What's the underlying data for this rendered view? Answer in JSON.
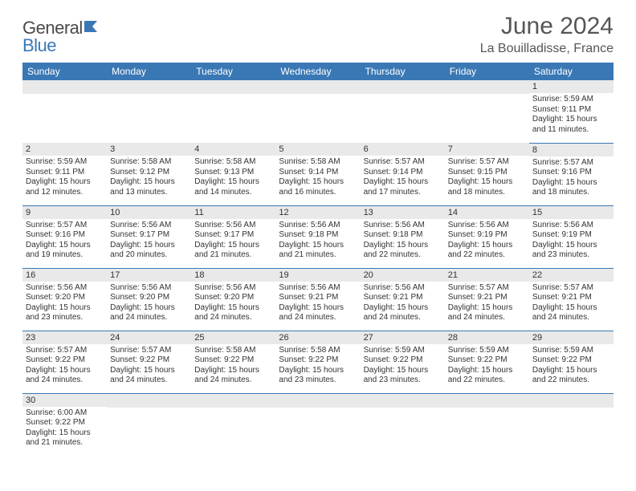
{
  "logo": {
    "part1": "General",
    "part2": "Blue"
  },
  "title": "June 2024",
  "location": "La Bouilladisse, France",
  "colors": {
    "header_bg": "#3a78b5",
    "header_text": "#ffffff",
    "daynum_bg": "#e9e9e9",
    "border": "#3a78b5",
    "body_text": "#333333",
    "title_text": "#555555"
  },
  "days": [
    "Sunday",
    "Monday",
    "Tuesday",
    "Wednesday",
    "Thursday",
    "Friday",
    "Saturday"
  ],
  "weeks": [
    [
      null,
      null,
      null,
      null,
      null,
      null,
      {
        "n": "1",
        "sr": "Sunrise: 5:59 AM",
        "ss": "Sunset: 9:11 PM",
        "d1": "Daylight: 15 hours",
        "d2": "and 11 minutes."
      }
    ],
    [
      {
        "n": "2",
        "sr": "Sunrise: 5:59 AM",
        "ss": "Sunset: 9:11 PM",
        "d1": "Daylight: 15 hours",
        "d2": "and 12 minutes."
      },
      {
        "n": "3",
        "sr": "Sunrise: 5:58 AM",
        "ss": "Sunset: 9:12 PM",
        "d1": "Daylight: 15 hours",
        "d2": "and 13 minutes."
      },
      {
        "n": "4",
        "sr": "Sunrise: 5:58 AM",
        "ss": "Sunset: 9:13 PM",
        "d1": "Daylight: 15 hours",
        "d2": "and 14 minutes."
      },
      {
        "n": "5",
        "sr": "Sunrise: 5:58 AM",
        "ss": "Sunset: 9:14 PM",
        "d1": "Daylight: 15 hours",
        "d2": "and 16 minutes."
      },
      {
        "n": "6",
        "sr": "Sunrise: 5:57 AM",
        "ss": "Sunset: 9:14 PM",
        "d1": "Daylight: 15 hours",
        "d2": "and 17 minutes."
      },
      {
        "n": "7",
        "sr": "Sunrise: 5:57 AM",
        "ss": "Sunset: 9:15 PM",
        "d1": "Daylight: 15 hours",
        "d2": "and 18 minutes."
      },
      {
        "n": "8",
        "sr": "Sunrise: 5:57 AM",
        "ss": "Sunset: 9:16 PM",
        "d1": "Daylight: 15 hours",
        "d2": "and 18 minutes."
      }
    ],
    [
      {
        "n": "9",
        "sr": "Sunrise: 5:57 AM",
        "ss": "Sunset: 9:16 PM",
        "d1": "Daylight: 15 hours",
        "d2": "and 19 minutes."
      },
      {
        "n": "10",
        "sr": "Sunrise: 5:56 AM",
        "ss": "Sunset: 9:17 PM",
        "d1": "Daylight: 15 hours",
        "d2": "and 20 minutes."
      },
      {
        "n": "11",
        "sr": "Sunrise: 5:56 AM",
        "ss": "Sunset: 9:17 PM",
        "d1": "Daylight: 15 hours",
        "d2": "and 21 minutes."
      },
      {
        "n": "12",
        "sr": "Sunrise: 5:56 AM",
        "ss": "Sunset: 9:18 PM",
        "d1": "Daylight: 15 hours",
        "d2": "and 21 minutes."
      },
      {
        "n": "13",
        "sr": "Sunrise: 5:56 AM",
        "ss": "Sunset: 9:18 PM",
        "d1": "Daylight: 15 hours",
        "d2": "and 22 minutes."
      },
      {
        "n": "14",
        "sr": "Sunrise: 5:56 AM",
        "ss": "Sunset: 9:19 PM",
        "d1": "Daylight: 15 hours",
        "d2": "and 22 minutes."
      },
      {
        "n": "15",
        "sr": "Sunrise: 5:56 AM",
        "ss": "Sunset: 9:19 PM",
        "d1": "Daylight: 15 hours",
        "d2": "and 23 minutes."
      }
    ],
    [
      {
        "n": "16",
        "sr": "Sunrise: 5:56 AM",
        "ss": "Sunset: 9:20 PM",
        "d1": "Daylight: 15 hours",
        "d2": "and 23 minutes."
      },
      {
        "n": "17",
        "sr": "Sunrise: 5:56 AM",
        "ss": "Sunset: 9:20 PM",
        "d1": "Daylight: 15 hours",
        "d2": "and 24 minutes."
      },
      {
        "n": "18",
        "sr": "Sunrise: 5:56 AM",
        "ss": "Sunset: 9:20 PM",
        "d1": "Daylight: 15 hours",
        "d2": "and 24 minutes."
      },
      {
        "n": "19",
        "sr": "Sunrise: 5:56 AM",
        "ss": "Sunset: 9:21 PM",
        "d1": "Daylight: 15 hours",
        "d2": "and 24 minutes."
      },
      {
        "n": "20",
        "sr": "Sunrise: 5:56 AM",
        "ss": "Sunset: 9:21 PM",
        "d1": "Daylight: 15 hours",
        "d2": "and 24 minutes."
      },
      {
        "n": "21",
        "sr": "Sunrise: 5:57 AM",
        "ss": "Sunset: 9:21 PM",
        "d1": "Daylight: 15 hours",
        "d2": "and 24 minutes."
      },
      {
        "n": "22",
        "sr": "Sunrise: 5:57 AM",
        "ss": "Sunset: 9:21 PM",
        "d1": "Daylight: 15 hours",
        "d2": "and 24 minutes."
      }
    ],
    [
      {
        "n": "23",
        "sr": "Sunrise: 5:57 AM",
        "ss": "Sunset: 9:22 PM",
        "d1": "Daylight: 15 hours",
        "d2": "and 24 minutes."
      },
      {
        "n": "24",
        "sr": "Sunrise: 5:57 AM",
        "ss": "Sunset: 9:22 PM",
        "d1": "Daylight: 15 hours",
        "d2": "and 24 minutes."
      },
      {
        "n": "25",
        "sr": "Sunrise: 5:58 AM",
        "ss": "Sunset: 9:22 PM",
        "d1": "Daylight: 15 hours",
        "d2": "and 24 minutes."
      },
      {
        "n": "26",
        "sr": "Sunrise: 5:58 AM",
        "ss": "Sunset: 9:22 PM",
        "d1": "Daylight: 15 hours",
        "d2": "and 23 minutes."
      },
      {
        "n": "27",
        "sr": "Sunrise: 5:59 AM",
        "ss": "Sunset: 9:22 PM",
        "d1": "Daylight: 15 hours",
        "d2": "and 23 minutes."
      },
      {
        "n": "28",
        "sr": "Sunrise: 5:59 AM",
        "ss": "Sunset: 9:22 PM",
        "d1": "Daylight: 15 hours",
        "d2": "and 22 minutes."
      },
      {
        "n": "29",
        "sr": "Sunrise: 5:59 AM",
        "ss": "Sunset: 9:22 PM",
        "d1": "Daylight: 15 hours",
        "d2": "and 22 minutes."
      }
    ],
    [
      {
        "n": "30",
        "sr": "Sunrise: 6:00 AM",
        "ss": "Sunset: 9:22 PM",
        "d1": "Daylight: 15 hours",
        "d2": "and 21 minutes."
      },
      null,
      null,
      null,
      null,
      null,
      null
    ]
  ]
}
